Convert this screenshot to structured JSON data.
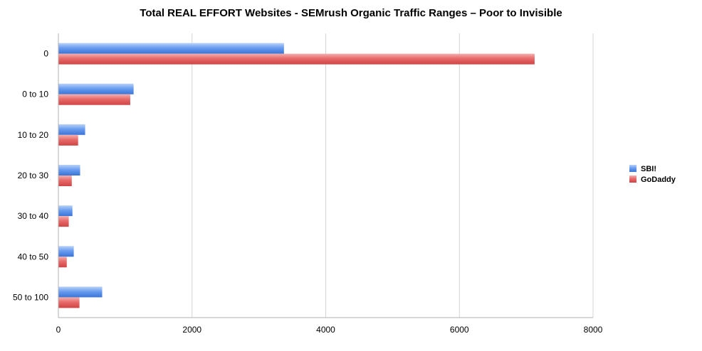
{
  "chart_data": {
    "type": "bar",
    "orientation": "horizontal",
    "title": "Total REAL EFFORT Websites - SEMrush Organic Traffic Ranges – Poor to Invisible",
    "xlabel": "",
    "ylabel": "",
    "categories": [
      "0",
      "0 to 10",
      "10 to 20",
      "20 to 30",
      "30 to 40",
      "40 to 50",
      "50 to 100"
    ],
    "series": [
      {
        "name": "SBI!",
        "color": "#4a84e0",
        "values": [
          3370,
          1120,
          395,
          320,
          205,
          225,
          650
        ]
      },
      {
        "name": "GoDaddy",
        "color": "#e05555",
        "values": [
          7120,
          1070,
          290,
          195,
          150,
          120,
          310
        ]
      }
    ],
    "xlim": [
      0,
      8000
    ],
    "xticks": [
      0,
      2000,
      4000,
      6000,
      8000
    ],
    "grid": "vertical",
    "legend_position": "right"
  }
}
